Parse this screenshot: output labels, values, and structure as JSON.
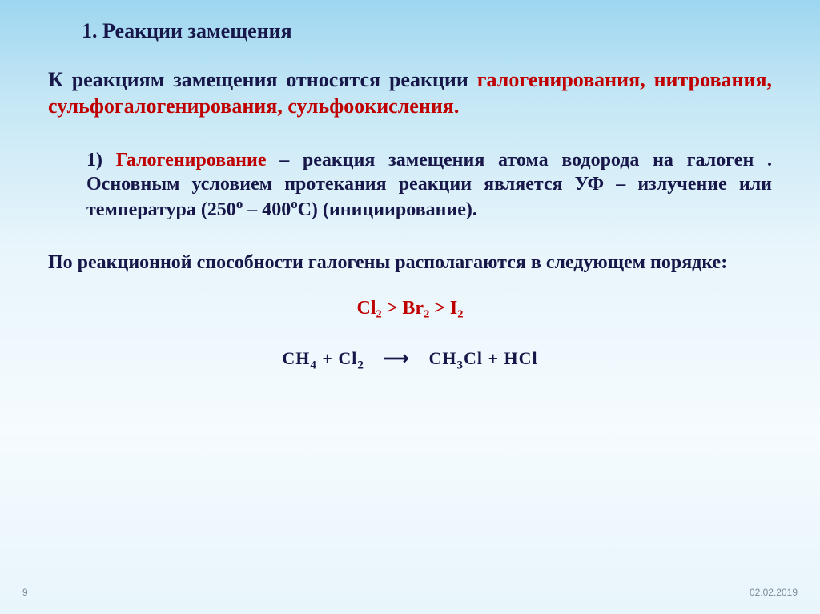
{
  "heading": "1. Реакции замещения",
  "intro": {
    "lead": "К реакциям замещения относятся реакции ",
    "kw1": "галогенирования",
    "sep1": ", ",
    "kw2": "нитрования",
    "sep2": ", ",
    "kw3": "сульфогалогенирования",
    "sep3": ", ",
    "kw4": "сульфоокисления",
    "tail": "."
  },
  "item1": {
    "num": "1) ",
    "term": "Галогенирование",
    "body_a": " – реакция замещения атома водорода на галоген . Основным условием протекания реакции является УФ – излучение или температура (250",
    "deg1": "o",
    "body_b": " – 400",
    "deg2": "o",
    "body_c": "С) (инициирование)."
  },
  "ranking_label": "По реакционной способности галогены располагаются в следующем порядке:",
  "ranking": "Cl₂  >  Br₂  >  I₂",
  "equation": {
    "r1": "CH",
    "r1s": "4",
    "plusA": "     +     ",
    "r2": "Cl",
    "r2s": "2",
    "arrow": "⟶",
    "p1": "CH",
    "p1s": "3",
    "p1t": "Cl",
    "plusB": "     +     ",
    "p2": "HCl"
  },
  "footer": {
    "page": "9",
    "date": "02.02.2019"
  },
  "colors": {
    "text": "#17174a",
    "keyword": "#c00000",
    "footer": "#7a8a95",
    "bg_top": "#9dd6f0",
    "bg_mid": "#e8f5fb"
  }
}
